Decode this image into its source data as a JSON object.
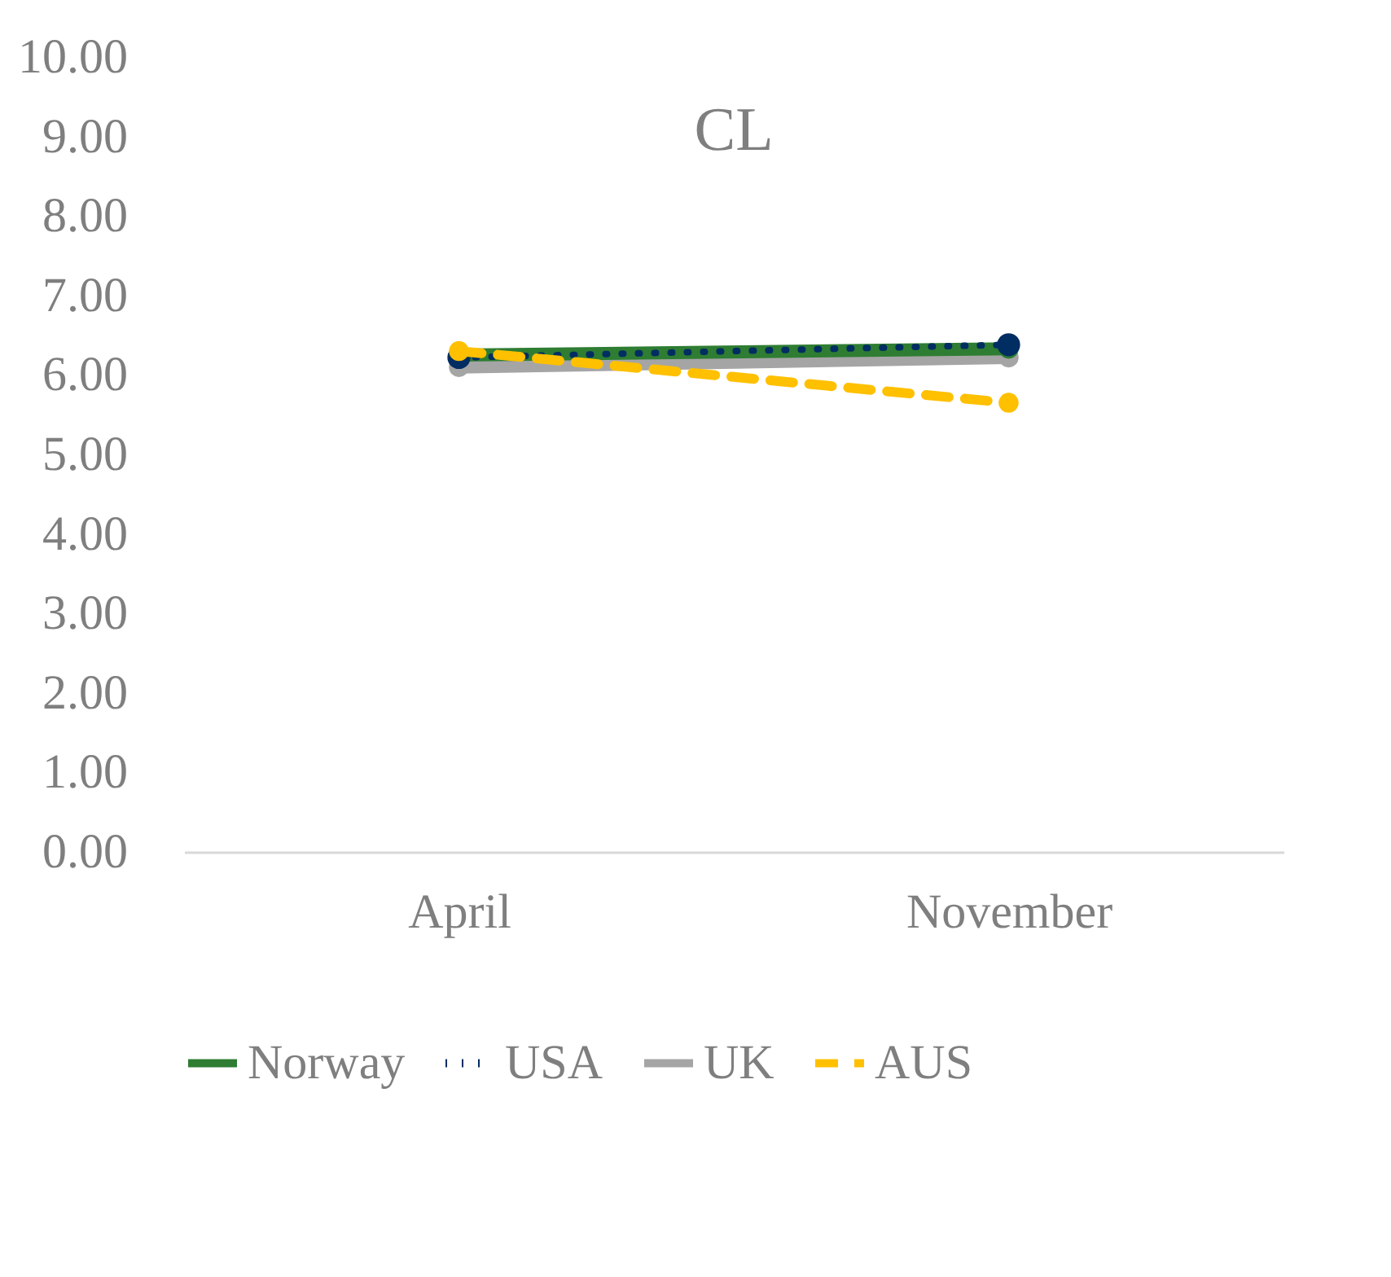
{
  "chart_data": {
    "type": "line",
    "title": "CL",
    "categories": [
      "April",
      "November"
    ],
    "series": [
      {
        "name": "Norway",
        "color": "#2e7d32",
        "values": [
          6.25,
          6.33
        ],
        "line_style": "solid"
      },
      {
        "name": "USA",
        "color": "#002d62",
        "values": [
          6.22,
          6.38
        ],
        "line_style": "dotted"
      },
      {
        "name": "UK",
        "color": "#a5a5a5",
        "values": [
          6.1,
          6.22
        ],
        "line_style": "solid"
      },
      {
        "name": "AUS",
        "color": "#ffc000",
        "values": [
          6.3,
          5.65
        ],
        "line_style": "dashed"
      }
    ],
    "ylim": [
      0,
      10
    ],
    "yticks": [
      {
        "value": 0,
        "label": "0.00"
      },
      {
        "value": 1,
        "label": "1.00"
      },
      {
        "value": 2,
        "label": "2.00"
      },
      {
        "value": 3,
        "label": "3.00"
      },
      {
        "value": 4,
        "label": "4.00"
      },
      {
        "value": 5,
        "label": "5.00"
      },
      {
        "value": 6,
        "label": "6.00"
      },
      {
        "value": 7,
        "label": "7.00"
      },
      {
        "value": 8,
        "label": "8.00"
      },
      {
        "value": 9,
        "label": "9.00"
      },
      {
        "value": 10,
        "label": "10.00"
      }
    ],
    "grid": false,
    "legend": "bottom",
    "marker": "circle"
  }
}
